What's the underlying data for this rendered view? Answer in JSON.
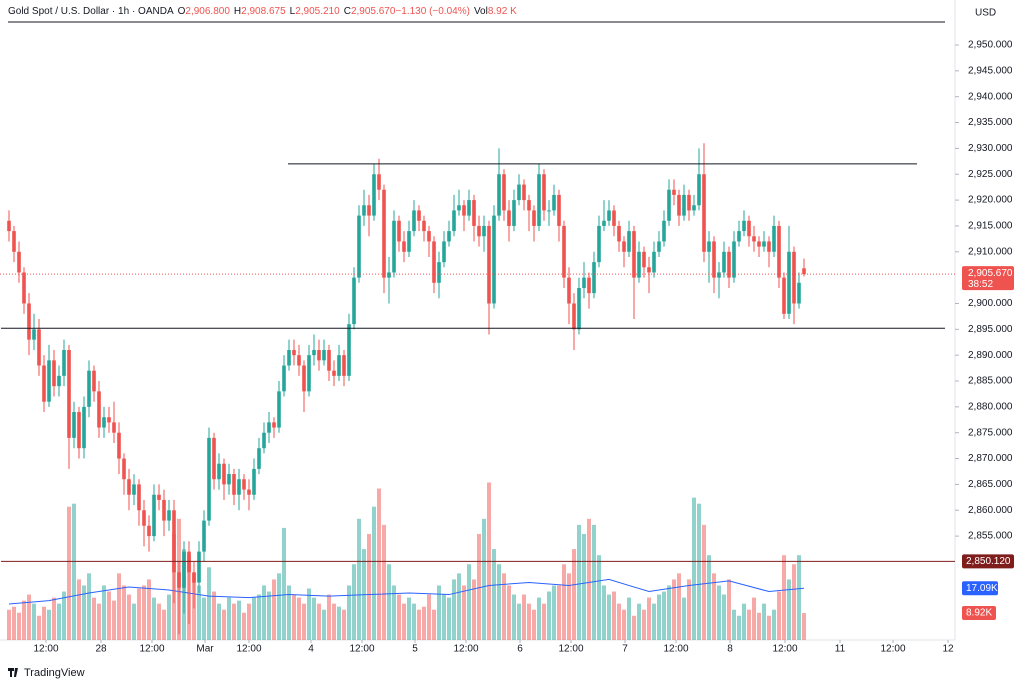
{
  "chart_data": {
    "type": "candlestick",
    "title": "Gold Spot / U.S. Dollar · 1h · OANDA",
    "header": [
      {
        "key": "O",
        "value": "2,906.800"
      },
      {
        "key": "H",
        "value": "2,908.675"
      },
      {
        "key": "L",
        "value": "2,905.210"
      },
      {
        "key": "C",
        "value": "2,905.670"
      },
      {
        "key": "",
        "value": "−1.130 (−0.04%)"
      },
      {
        "key": "Vol",
        "value": "8.92 K"
      }
    ],
    "currency": "USD",
    "brand": "TradingView",
    "up_color": "#26a69a",
    "down_color": "#ef5350",
    "xlim": [
      -1.8,
      189.2
    ],
    "ylim": [
      2834.9,
      2954.45
    ],
    "volume_ylim": [
      0,
      204
    ],
    "xticks": [
      {
        "value": 7.4,
        "label": "12:00"
      },
      {
        "value": 18.4,
        "label": "28"
      },
      {
        "value": 28.6,
        "label": "12:00"
      },
      {
        "value": 39.2,
        "label": "Mar"
      },
      {
        "value": 48,
        "label": "12:00"
      },
      {
        "value": 60.4,
        "label": "4"
      },
      {
        "value": 70.6,
        "label": "12:00"
      },
      {
        "value": 81.2,
        "label": "5"
      },
      {
        "value": 91.4,
        "label": "12:00"
      },
      {
        "value": 102.2,
        "label": "6"
      },
      {
        "value": 112.4,
        "label": "12:00"
      },
      {
        "value": 123.2,
        "label": "7"
      },
      {
        "value": 133.4,
        "label": "12:00"
      },
      {
        "value": 144.2,
        "label": "8"
      },
      {
        "value": 155.2,
        "label": "12:00"
      },
      {
        "value": 166.2,
        "label": "11"
      },
      {
        "value": 176.8,
        "label": "12:00"
      },
      {
        "value": 187.8,
        "label": "12"
      }
    ],
    "yticks": [
      {
        "value": 2950,
        "label": "2,950.000"
      },
      {
        "value": 2945,
        "label": "2,945.000"
      },
      {
        "value": 2940,
        "label": "2,940.000"
      },
      {
        "value": 2935,
        "label": "2,935.000"
      },
      {
        "value": 2930,
        "label": "2,930.000"
      },
      {
        "value": 2925,
        "label": "2,925.000"
      },
      {
        "value": 2920,
        "label": "2,920.000"
      },
      {
        "value": 2915,
        "label": "2,915.000"
      },
      {
        "value": 2910,
        "label": "2,910.000"
      },
      {
        "value": 2900,
        "label": "2,900.000"
      },
      {
        "value": 2895,
        "label": "2,895.000"
      },
      {
        "value": 2890,
        "label": "2,890.000"
      },
      {
        "value": 2885,
        "label": "2,885.000"
      },
      {
        "value": 2880,
        "label": "2,880.000"
      },
      {
        "value": 2875,
        "label": "2,875.000"
      },
      {
        "value": 2870,
        "label": "2,870.000"
      },
      {
        "value": 2865,
        "label": "2,865.000"
      },
      {
        "value": 2860,
        "label": "2,860.000"
      },
      {
        "value": 2855,
        "label": "2,855.000"
      }
    ],
    "lines": [
      {
        "price": 2927,
        "start": 55.8,
        "end": 181.6,
        "color": "#131722"
      },
      {
        "price": 2895.2,
        "start": -1.6,
        "end": 187.2,
        "color": "#131722"
      },
      {
        "price": 2850.12,
        "start": -1.6,
        "end": 189.2,
        "color": "#7f1d1d"
      }
    ],
    "last_price": {
      "value": 2905.67,
      "label": "2,905.670"
    },
    "countdown": "38:52",
    "line_label": {
      "value": 2850.12,
      "label": "2,850.120"
    },
    "volume_ma_label": {
      "value": 17.09,
      "label": "17.09K"
    },
    "volume_label": {
      "value": 8.92,
      "label": "8.92K"
    },
    "ohlc": [
      [
        2916,
        2918,
        2912,
        2914
      ],
      [
        2914,
        2915,
        2908,
        2910
      ],
      [
        2910,
        2912,
        2904,
        2906
      ],
      [
        2906,
        2907,
        2898,
        2900
      ],
      [
        2900,
        2902,
        2890,
        2893
      ],
      [
        2893,
        2898,
        2891,
        2895
      ],
      [
        2895,
        2897,
        2886,
        2888
      ],
      [
        2888,
        2890,
        2879,
        2881
      ],
      [
        2881,
        2892,
        2880,
        2889
      ],
      [
        2889,
        2891,
        2882,
        2884
      ],
      [
        2884,
        2888,
        2882,
        2886
      ],
      [
        2886,
        2893,
        2884,
        2891
      ],
      [
        2891,
        2892,
        2868,
        2874
      ],
      [
        2874,
        2881,
        2872,
        2879
      ],
      [
        2879,
        2880,
        2870,
        2872
      ],
      [
        2872,
        2882,
        2870,
        2880
      ],
      [
        2880,
        2889,
        2878,
        2887
      ],
      [
        2887,
        2888,
        2881,
        2883
      ],
      [
        2883,
        2885,
        2874,
        2876
      ],
      [
        2876,
        2880,
        2874,
        2878
      ],
      [
        2878,
        2880,
        2875,
        2877
      ],
      [
        2877,
        2881,
        2873,
        2875
      ],
      [
        2875,
        2877,
        2867,
        2870
      ],
      [
        2870,
        2871,
        2863,
        2866
      ],
      [
        2866,
        2868,
        2860,
        2863
      ],
      [
        2863,
        2867,
        2861,
        2865
      ],
      [
        2865,
        2866,
        2857,
        2860
      ],
      [
        2860,
        2862,
        2853,
        2857
      ],
      [
        2857,
        2859,
        2852,
        2855
      ],
      [
        2855,
        2865,
        2854,
        2863
      ],
      [
        2863,
        2865,
        2860,
        2862
      ],
      [
        2862,
        2864,
        2855,
        2858
      ],
      [
        2858,
        2862,
        2856,
        2860
      ],
      [
        2860,
        2862,
        2842,
        2848
      ],
      [
        2848,
        2850,
        2836,
        2845
      ],
      [
        2845,
        2854,
        2840,
        2852
      ],
      [
        2852,
        2854,
        2838,
        2848
      ],
      [
        2848,
        2850,
        2841,
        2846
      ],
      [
        2846,
        2854,
        2844,
        2852
      ],
      [
        2852,
        2860,
        2850,
        2858
      ],
      [
        2858,
        2876,
        2857,
        2874
      ],
      [
        2874,
        2875,
        2864,
        2866
      ],
      [
        2866,
        2871,
        2864,
        2869
      ],
      [
        2869,
        2870,
        2862,
        2865
      ],
      [
        2865,
        2869,
        2863,
        2867
      ],
      [
        2867,
        2868,
        2861,
        2863
      ],
      [
        2863,
        2868,
        2860,
        2866
      ],
      [
        2866,
        2867,
        2862,
        2864
      ],
      [
        2864,
        2866,
        2860,
        2863
      ],
      [
        2863,
        2870,
        2862,
        2868
      ],
      [
        2868,
        2874,
        2867,
        2872
      ],
      [
        2872,
        2877,
        2871,
        2875
      ],
      [
        2875,
        2879,
        2873,
        2877
      ],
      [
        2877,
        2878,
        2874,
        2876
      ],
      [
        2876,
        2885,
        2875,
        2883
      ],
      [
        2883,
        2890,
        2882,
        2888
      ],
      [
        2888,
        2893,
        2887,
        2891
      ],
      [
        2891,
        2893,
        2888,
        2890
      ],
      [
        2890,
        2892,
        2886,
        2888
      ],
      [
        2888,
        2889,
        2879,
        2883
      ],
      [
        2883,
        2892,
        2882,
        2890
      ],
      [
        2890,
        2894,
        2888,
        2891
      ],
      [
        2891,
        2893,
        2887,
        2889
      ],
      [
        2889,
        2893,
        2888,
        2891
      ],
      [
        2891,
        2892,
        2885,
        2887
      ],
      [
        2887,
        2889,
        2884,
        2886
      ],
      [
        2886,
        2892,
        2885,
        2890
      ],
      [
        2890,
        2891,
        2884,
        2886
      ],
      [
        2886,
        2898,
        2885,
        2896
      ],
      [
        2896,
        2907,
        2895,
        2905
      ],
      [
        2905,
        2919,
        2904,
        2917
      ],
      [
        2917,
        2922,
        2915,
        2919
      ],
      [
        2919,
        2921,
        2913,
        2917
      ],
      [
        2917,
        2927,
        2916,
        2925
      ],
      [
        2925,
        2928,
        2920,
        2922
      ],
      [
        2922,
        2923,
        2902,
        2905
      ],
      [
        2905,
        2909,
        2900,
        2906
      ],
      [
        2906,
        2918,
        2905,
        2916
      ],
      [
        2916,
        2917,
        2910,
        2912
      ],
      [
        2912,
        2914,
        2908,
        2910
      ],
      [
        2910,
        2916,
        2909,
        2914
      ],
      [
        2914,
        2920,
        2913,
        2918
      ],
      [
        2918,
        2919,
        2914,
        2916
      ],
      [
        2916,
        2917,
        2912,
        2914
      ],
      [
        2914,
        2915,
        2909,
        2912
      ],
      [
        2912,
        2913,
        2902,
        2904
      ],
      [
        2904,
        2910,
        2901,
        2908
      ],
      [
        2908,
        2914,
        2907,
        2912
      ],
      [
        2912,
        2916,
        2911,
        2914
      ],
      [
        2914,
        2921,
        2913,
        2918
      ],
      [
        2918,
        2922,
        2917,
        2919
      ],
      [
        2919,
        2920,
        2914,
        2917
      ],
      [
        2917,
        2922,
        2916,
        2920
      ],
      [
        2920,
        2921,
        2912,
        2915
      ],
      [
        2915,
        2917,
        2911,
        2913
      ],
      [
        2913,
        2917,
        2910,
        2915
      ],
      [
        2915,
        2916,
        2894,
        2900
      ],
      [
        2900,
        2919,
        2899,
        2917
      ],
      [
        2917,
        2930,
        2916,
        2925
      ],
      [
        2925,
        2926,
        2916,
        2918
      ],
      [
        2918,
        2920,
        2912,
        2915
      ],
      [
        2915,
        2922,
        2914,
        2920
      ],
      [
        2920,
        2925,
        2919,
        2923
      ],
      [
        2923,
        2924,
        2918,
        2920
      ],
      [
        2920,
        2921,
        2914,
        2918
      ],
      [
        2918,
        2919,
        2912,
        2915
      ],
      [
        2915,
        2927,
        2914,
        2925
      ],
      [
        2925,
        2926,
        2916,
        2918
      ],
      [
        2918,
        2920,
        2915,
        2918
      ],
      [
        2918,
        2923,
        2917,
        2921
      ],
      [
        2921,
        2922,
        2912,
        2915
      ],
      [
        2915,
        2916,
        2903,
        2905
      ],
      [
        2905,
        2907,
        2896,
        2900
      ],
      [
        2900,
        2902,
        2891,
        2895
      ],
      [
        2895,
        2905,
        2894,
        2903
      ],
      [
        2903,
        2908,
        2901,
        2905
      ],
      [
        2905,
        2906,
        2899,
        2902
      ],
      [
        2902,
        2910,
        2901,
        2908
      ],
      [
        2908,
        2917,
        2907,
        2915
      ],
      [
        2915,
        2920,
        2914,
        2916
      ],
      [
        2916,
        2920,
        2915,
        2918
      ],
      [
        2918,
        2919,
        2913,
        2915
      ],
      [
        2915,
        2916,
        2910,
        2912
      ],
      [
        2912,
        2913,
        2907,
        2910
      ],
      [
        2910,
        2916,
        2909,
        2914
      ],
      [
        2914,
        2915,
        2897,
        2905
      ],
      [
        2905,
        2912,
        2904,
        2910
      ],
      [
        2910,
        2911,
        2905,
        2907
      ],
      [
        2907,
        2909,
        2902,
        2906
      ],
      [
        2906,
        2912,
        2905,
        2910
      ],
      [
        2910,
        2914,
        2909,
        2912
      ],
      [
        2912,
        2918,
        2911,
        2916
      ],
      [
        2916,
        2924,
        2915,
        2922
      ],
      [
        2922,
        2924,
        2919,
        2921
      ],
      [
        2921,
        2922,
        2915,
        2917
      ],
      [
        2917,
        2923,
        2916,
        2921
      ],
      [
        2921,
        2922,
        2916,
        2918
      ],
      [
        2918,
        2921,
        2917,
        2919
      ],
      [
        2919,
        2930,
        2918,
        2925
      ],
      [
        2925,
        2931,
        2908,
        2910
      ],
      [
        2910,
        2914,
        2904,
        2912
      ],
      [
        2912,
        2913,
        2902,
        2905
      ],
      [
        2905,
        2908,
        2901,
        2906
      ],
      [
        2906,
        2912,
        2905,
        2910
      ],
      [
        2910,
        2911,
        2903,
        2905
      ],
      [
        2905,
        2914,
        2904,
        2912
      ],
      [
        2912,
        2916,
        2911,
        2914
      ],
      [
        2914,
        2918,
        2913,
        2916
      ],
      [
        2916,
        2917,
        2911,
        2913
      ],
      [
        2913,
        2915,
        2910,
        2912
      ],
      [
        2912,
        2913,
        2909,
        2911
      ],
      [
        2911,
        2914,
        2910,
        2912
      ],
      [
        2912,
        2913,
        2907,
        2910
      ],
      [
        2910,
        2917,
        2909,
        2915
      ],
      [
        2915,
        2916,
        2903,
        2905
      ],
      [
        2905,
        2906,
        2897,
        2898
      ],
      [
        2898,
        2915,
        2897,
        2910
      ],
      [
        2910,
        2911,
        2896,
        2900
      ],
      [
        2900,
        2906,
        2899,
        2904
      ],
      [
        2906.8,
        2908.675,
        2905.21,
        2905.67
      ]
    ],
    "volumes": [
      10,
      11,
      9,
      13,
      15,
      12,
      8,
      11,
      10,
      14,
      12,
      16,
      44,
      45,
      20,
      18,
      22,
      14,
      12,
      18,
      16,
      13,
      22,
      18,
      15,
      12,
      17,
      18,
      20,
      14,
      12,
      10,
      15,
      35,
      40,
      30,
      28,
      22,
      18,
      14,
      24,
      16,
      12,
      10,
      14,
      12,
      13,
      9,
      12,
      14,
      15,
      18,
      16,
      20,
      22,
      37,
      18,
      15,
      14,
      12,
      17,
      14,
      12,
      10,
      15,
      12,
      11,
      10,
      18,
      25,
      40,
      30,
      35,
      44,
      50,
      38,
      25,
      18,
      15,
      12,
      14,
      12,
      10,
      11,
      15,
      10,
      18,
      15,
      14,
      20,
      22,
      18,
      25,
      20,
      35,
      40,
      52,
      30,
      25,
      22,
      18,
      15,
      12,
      15,
      12,
      10,
      14,
      12,
      16,
      18,
      18,
      25,
      22,
      30,
      38,
      35,
      40,
      38,
      28,
      18,
      15,
      16,
      12,
      10,
      14,
      8,
      12,
      10,
      14,
      12,
      15,
      16,
      18,
      20,
      22,
      14,
      20,
      47,
      45,
      38,
      28,
      22,
      18,
      15,
      20,
      10,
      8,
      12,
      10,
      14,
      9,
      12,
      8,
      10,
      16,
      28,
      20,
      25,
      28,
      8.92
    ],
    "volume_ma": {
      "color": "#2962ff",
      "x": [
        0,
        8,
        16,
        24,
        32,
        40,
        48,
        56,
        64,
        72,
        80,
        88,
        96,
        104,
        112,
        120,
        128,
        136,
        144,
        152,
        159
      ],
      "values": [
        11.9,
        13,
        15.5,
        17.5,
        16.5,
        14.5,
        14,
        15,
        14.5,
        15,
        15.5,
        15,
        18,
        19,
        18,
        20,
        16,
        18,
        19.5,
        16,
        17.09
      ]
    }
  }
}
